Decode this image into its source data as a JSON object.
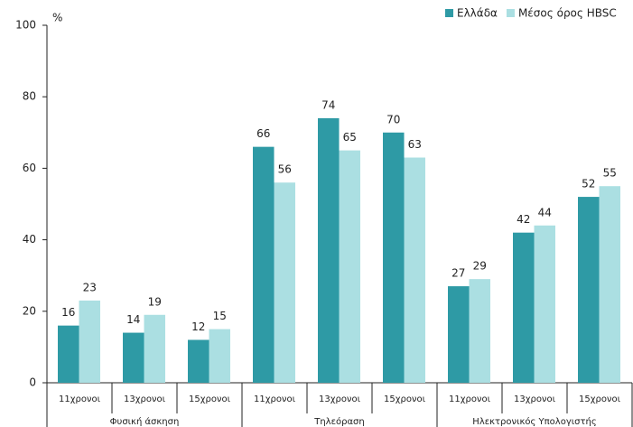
{
  "chart_data": {
    "type": "bar",
    "y_unit": "%",
    "categories": [
      "11χρονοι",
      "13χρονοι",
      "15χρονοι",
      "11χρονοι",
      "13χρονοι",
      "15χρονοι",
      "11χρονοι",
      "13χρονοι",
      "15χρονοι"
    ],
    "category_groups": [
      "Φυσική άσκηση",
      "Τηλεόραση",
      "Ηλεκτρονικός Υπολογιστής"
    ],
    "series": [
      {
        "name": "Ελλάδα",
        "color": "#2e9aa5",
        "values": [
          16,
          14,
          12,
          66,
          74,
          70,
          27,
          42,
          52
        ]
      },
      {
        "name": "Μέσος όρος HBSC",
        "color": "#abdfe2",
        "values": [
          23,
          19,
          15,
          56,
          65,
          63,
          29,
          44,
          55
        ]
      }
    ],
    "ylim": [
      0,
      100
    ],
    "yticks": [
      0,
      20,
      40,
      60,
      80,
      100
    ],
    "grid": false,
    "legend": "top-right"
  }
}
